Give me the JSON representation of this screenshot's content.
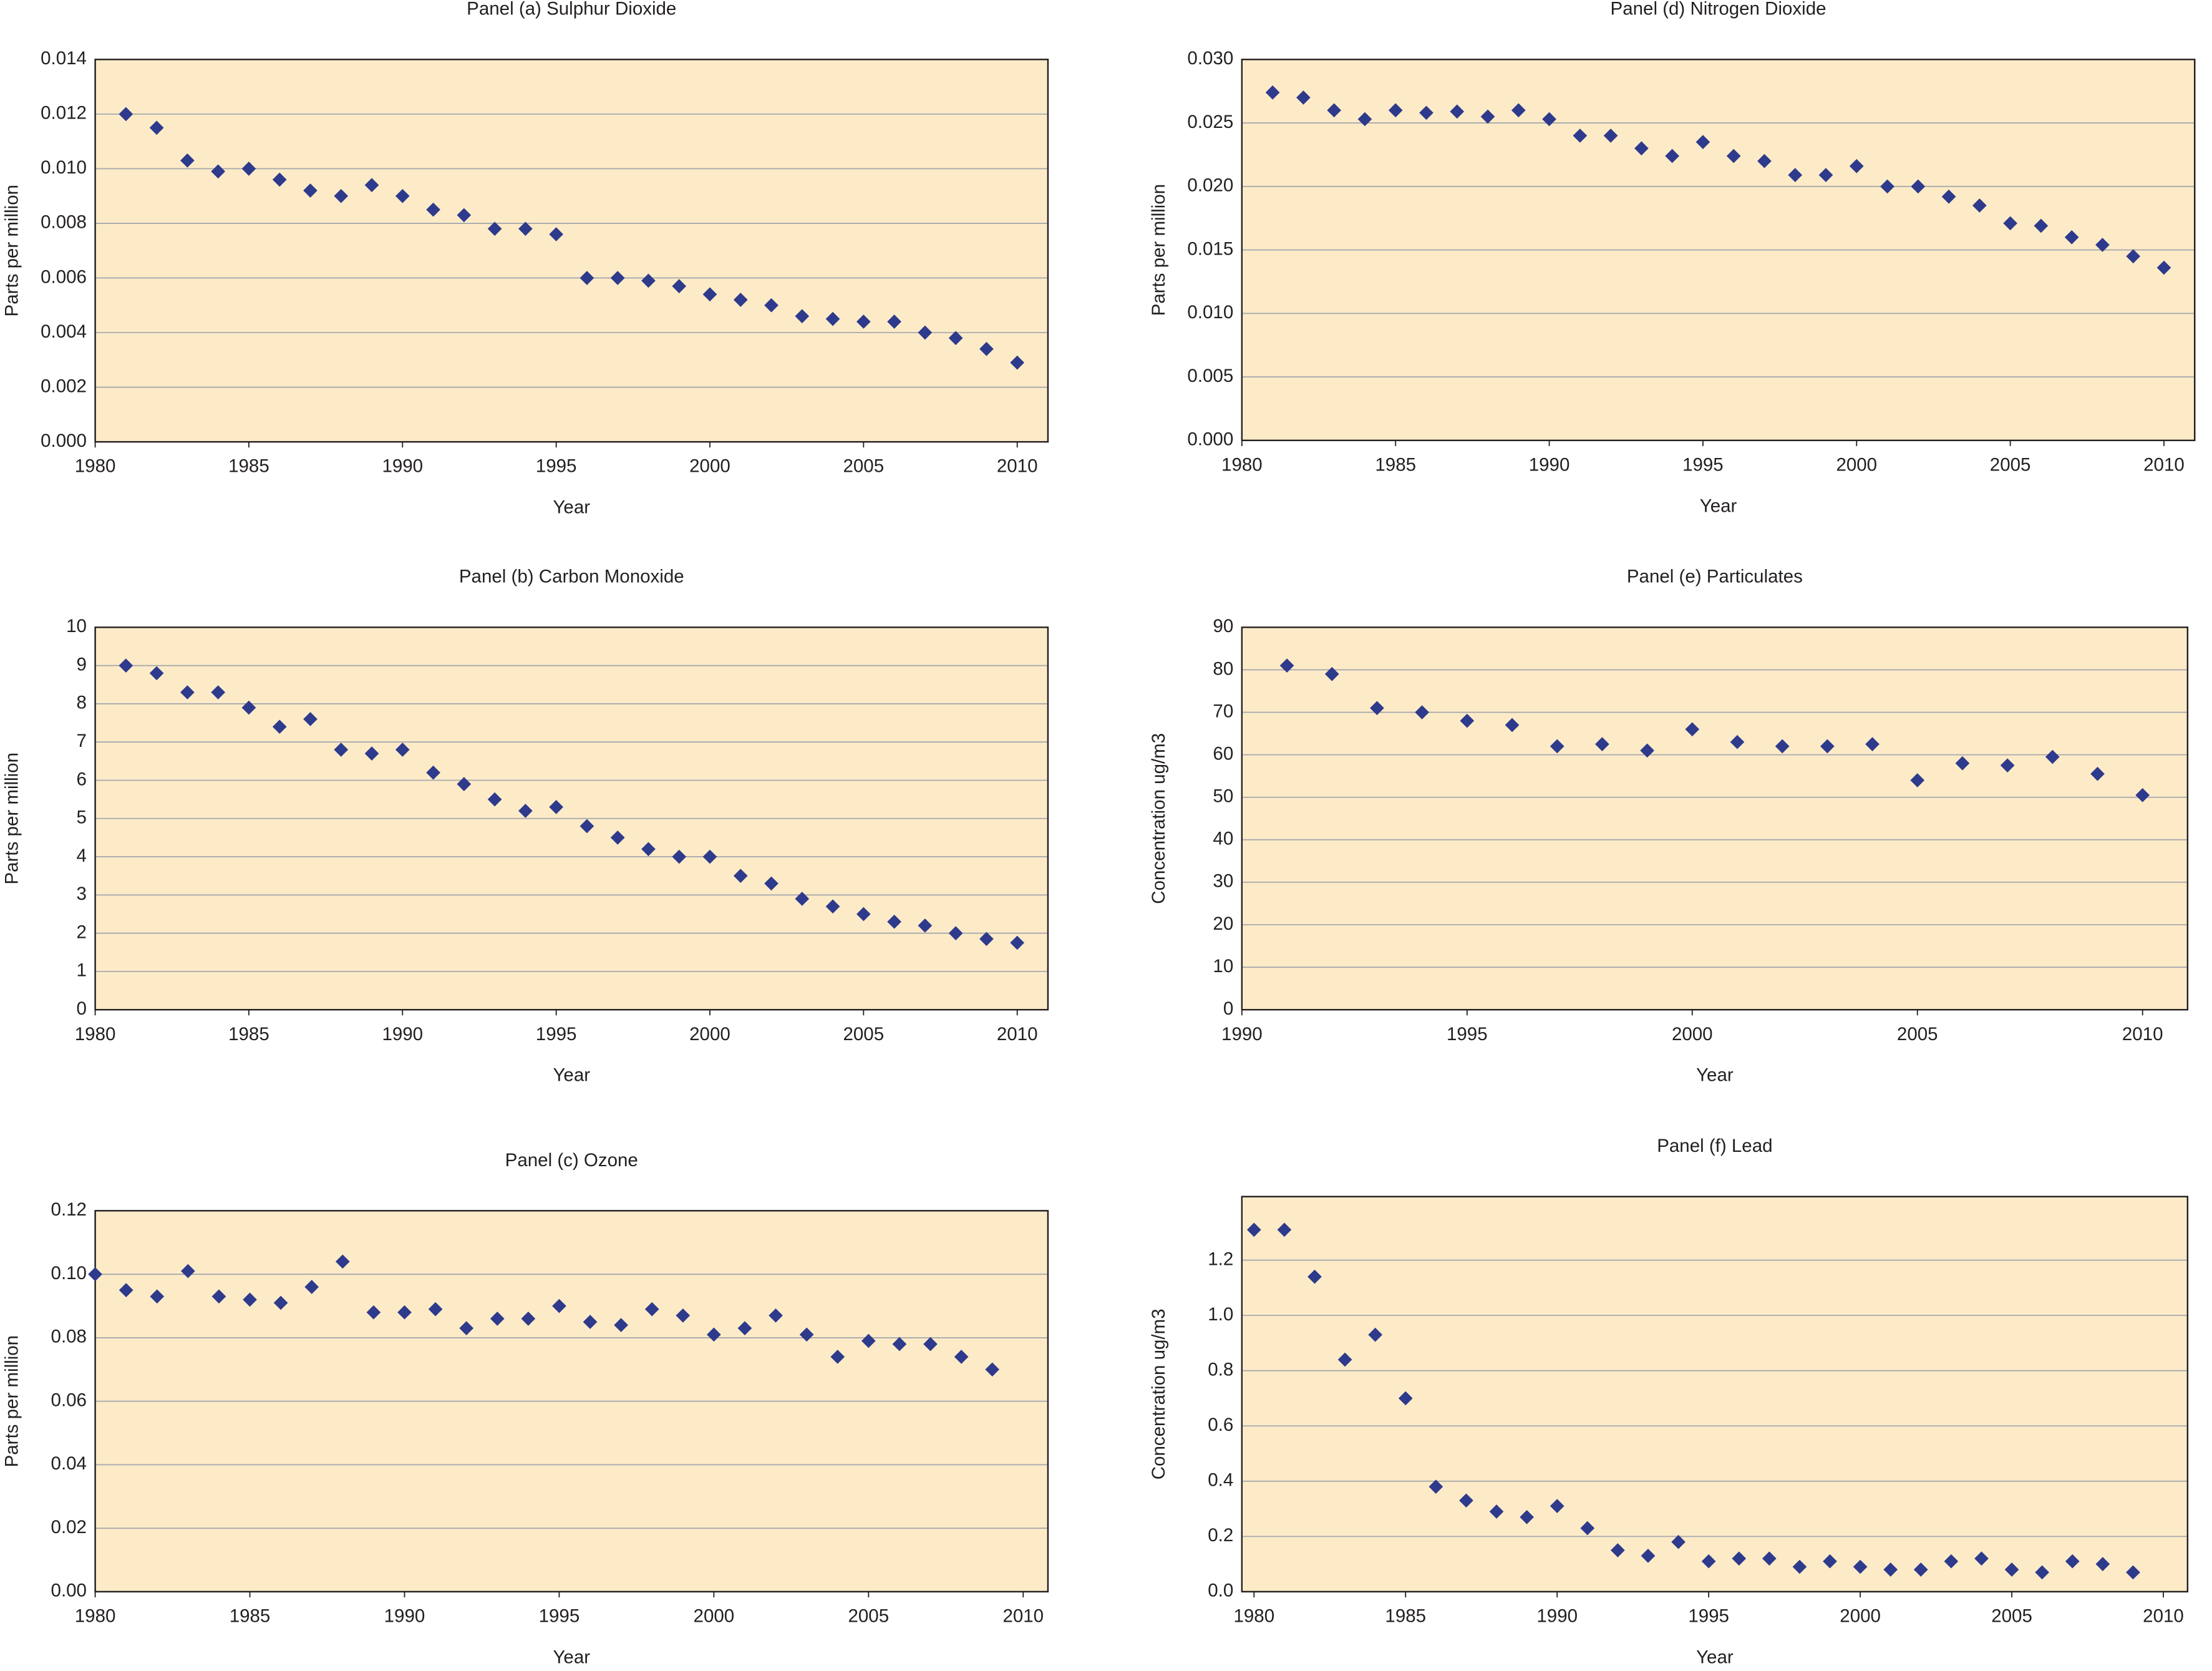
{
  "chart_data": [
    {
      "type": "scatter",
      "title": "Panel (a) Sulphur Dioxide",
      "x_label": "Year",
      "y_label": "Parts per million",
      "color": "#2e3a8c",
      "grid": true,
      "x": [
        1981,
        1982,
        1983,
        1984,
        1985,
        1986,
        1987,
        1988,
        1989,
        1990,
        1991,
        1992,
        1993,
        1994,
        1995,
        1996,
        1997,
        1998,
        1999,
        2000,
        2001,
        2002,
        2003,
        2004,
        2005,
        2006,
        2007,
        2008,
        2009,
        2010
      ],
      "values": [
        0.012,
        0.0115,
        0.0103,
        0.0099,
        0.01,
        0.0096,
        0.0092,
        0.009,
        0.0094,
        0.009,
        0.0085,
        0.0083,
        0.0078,
        0.0078,
        0.0076,
        0.006,
        0.006,
        0.0059,
        0.0057,
        0.0054,
        0.0052,
        0.005,
        0.0046,
        0.0045,
        0.0044,
        0.0044,
        0.004,
        0.0038,
        0.0034,
        0.0029
      ],
      "xlim": [
        1980,
        2011
      ],
      "xticks": [
        1980,
        1985,
        1990,
        1995,
        2000,
        2005,
        2010
      ],
      "ylim": [
        0,
        0.014
      ],
      "yticks": [
        {
          "value": 0,
          "label": "0.000"
        },
        0.002,
        0.004,
        0.006,
        0.008,
        {
          "value": 0.01,
          "label": "0.010"
        },
        0.012,
        0.014
      ]
    },
    {
      "type": "scatter",
      "title": "Panel (d) Nitrogen Dioxide",
      "x_label": "Year",
      "y_label": "Parts per million",
      "color": "#2e3a8c",
      "grid": true,
      "x": [
        1981,
        1982,
        1983,
        1984,
        1985,
        1986,
        1987,
        1988,
        1989,
        1990,
        1991,
        1992,
        1993,
        1994,
        1995,
        1996,
        1997,
        1998,
        1999,
        2000,
        2001,
        2002,
        2003,
        2004,
        2005,
        2006,
        2007,
        2008,
        2009,
        2010
      ],
      "values": [
        0.0274,
        0.027,
        0.026,
        0.0253,
        0.026,
        0.0258,
        0.0259,
        0.0255,
        0.026,
        0.0253,
        0.024,
        0.024,
        0.023,
        0.0224,
        0.0235,
        0.0224,
        0.022,
        0.0209,
        0.0209,
        0.0216,
        0.02,
        0.02,
        0.0192,
        0.0185,
        0.0171,
        0.0169,
        0.016,
        0.0154,
        0.0145,
        0.0136
      ],
      "xlim": [
        1980,
        2011
      ],
      "xticks": [
        1980,
        1985,
        1990,
        1995,
        2000,
        2005,
        2010
      ],
      "ylim": [
        0,
        0.03
      ],
      "yticks": [
        {
          "value": 0,
          "label": "0.000"
        },
        0.005,
        {
          "value": 0.01,
          "label": "0.010"
        },
        0.015,
        {
          "value": 0.02,
          "label": "0.020"
        },
        0.025,
        {
          "value": 0.03,
          "label": "0.030"
        }
      ]
    },
    {
      "type": "scatter",
      "title": "Panel (b) Carbon Monoxide",
      "x_label": "Year",
      "y_label": "Parts per million",
      "color": "#2e3a8c",
      "grid": true,
      "x": [
        1981,
        1982,
        1983,
        1984,
        1985,
        1986,
        1987,
        1988,
        1989,
        1990,
        1991,
        1992,
        1993,
        1994,
        1995,
        1996,
        1997,
        1998,
        1999,
        2000,
        2001,
        2002,
        2003,
        2004,
        2005,
        2006,
        2007,
        2008,
        2009,
        2010
      ],
      "values": [
        9.0,
        8.8,
        8.3,
        8.3,
        7.9,
        7.4,
        7.6,
        6.8,
        6.7,
        6.8,
        6.2,
        5.9,
        5.5,
        5.2,
        5.3,
        4.8,
        4.5,
        4.2,
        4.0,
        4.0,
        3.5,
        3.3,
        2.9,
        2.7,
        2.5,
        2.3,
        2.2,
        2.0,
        1.85,
        1.75
      ],
      "xlim": [
        1980,
        2011
      ],
      "xticks": [
        1980,
        1985,
        1990,
        1995,
        2000,
        2005,
        2010
      ],
      "ylim": [
        0,
        10
      ],
      "yticks": [
        0,
        1,
        2,
        3,
        4,
        5,
        6,
        7,
        8,
        9,
        10
      ]
    },
    {
      "type": "scatter",
      "title": "Panel (e) Particulates",
      "x_label": "Year",
      "y_label": "Concentration ug/m3",
      "color": "#2e3a8c",
      "grid": true,
      "x": [
        1991,
        1992,
        1993,
        1994,
        1995,
        1996,
        1997,
        1998,
        1999,
        2000,
        2001,
        2002,
        2003,
        2004,
        2005,
        2006,
        2007,
        2008,
        2009,
        2010
      ],
      "values": [
        81,
        79,
        71,
        70,
        68,
        67,
        62,
        62.5,
        61,
        66,
        63,
        62,
        62,
        62.5,
        54,
        58,
        57.5,
        59.5,
        55.5,
        50.5
      ],
      "xlim": [
        1990,
        2011
      ],
      "xticks": [
        1990,
        1995,
        2000,
        2005,
        2010
      ],
      "ylim": [
        0,
        90
      ],
      "yticks": [
        0,
        10,
        20,
        30,
        40,
        50,
        60,
        70,
        80,
        90
      ]
    },
    {
      "type": "scatter",
      "title": "Panel (c) Ozone",
      "x_label": "Year",
      "y_label": "Parts per million",
      "color": "#2e3a8c",
      "grid": true,
      "x": [
        1980,
        1981,
        1982,
        1983,
        1984,
        1985,
        1986,
        1987,
        1988,
        1989,
        1990,
        1991,
        1992,
        1993,
        1994,
        1995,
        1996,
        1997,
        1998,
        1999,
        2000,
        2001,
        2002,
        2003,
        2004,
        2005,
        2006,
        2007,
        2008,
        2009
      ],
      "values": [
        0.1,
        0.095,
        0.093,
        0.101,
        0.093,
        0.092,
        0.091,
        0.096,
        0.104,
        0.088,
        0.088,
        0.089,
        0.083,
        0.086,
        0.086,
        0.09,
        0.085,
        0.084,
        0.089,
        0.087,
        0.081,
        0.083,
        0.087,
        0.081,
        0.074,
        0.079,
        0.078,
        0.078,
        0.074,
        0.07
      ],
      "xlim": [
        1980,
        2010.8
      ],
      "xticks": [
        1980,
        1985,
        1990,
        1995,
        2000,
        2005,
        2010
      ],
      "ylim": [
        0,
        0.12
      ],
      "yticks": [
        {
          "value": 0,
          "label": "0.00"
        },
        0.02,
        0.04,
        0.06,
        0.08,
        {
          "value": 0.1,
          "label": "0.10"
        },
        0.12
      ]
    },
    {
      "type": "scatter",
      "title": "Panel (f) Lead",
      "x_label": "Year",
      "y_label": "Concentration ug/m3",
      "color": "#2e3a8c",
      "grid": true,
      "x": [
        1980,
        1981,
        1982,
        1983,
        1984,
        1985,
        1986,
        1987,
        1988,
        1989,
        1990,
        1991,
        1992,
        1993,
        1994,
        1995,
        1996,
        1997,
        1998,
        1999,
        2000,
        2001,
        2002,
        2003,
        2004,
        2005,
        2006,
        2007,
        2008,
        2009
      ],
      "values": [
        1.31,
        1.31,
        1.14,
        0.84,
        0.93,
        0.7,
        0.38,
        0.33,
        0.29,
        0.27,
        0.31,
        0.23,
        0.15,
        0.13,
        0.18,
        0.11,
        0.12,
        0.12,
        0.09,
        0.11,
        0.09,
        0.08,
        0.08,
        0.11,
        0.12,
        0.08,
        0.07,
        0.11,
        0.1,
        0.07
      ],
      "xlim": [
        1979.6,
        2010.8
      ],
      "xticks": [
        1980,
        1985,
        1990,
        1995,
        2000,
        2005,
        2010
      ],
      "ylim": [
        0,
        1.43
      ],
      "yticks": [
        {
          "value": 0,
          "label": "0.0"
        },
        0.2,
        0.4,
        0.6,
        0.8,
        {
          "value": 1,
          "label": "1.0"
        },
        1.2
      ]
    }
  ]
}
